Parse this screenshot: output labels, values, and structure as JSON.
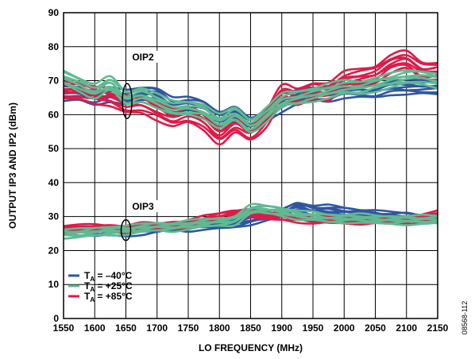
{
  "chart_data": {
    "type": "line",
    "title": "",
    "xlabel": "LO FREQUENCY (MHz)",
    "ylabel": "OUTPUT IP3 AND IP2 (dBm)",
    "xlim": [
      1550,
      2150
    ],
    "ylim": [
      0,
      90
    ],
    "x_ticks": [
      "1550",
      "1600",
      "1650",
      "1700",
      "1750",
      "1800",
      "1850",
      "1900",
      "1950",
      "2000",
      "2050",
      "2100",
      "2150"
    ],
    "y_ticks": [
      "0",
      "10",
      "20",
      "30",
      "40",
      "50",
      "60",
      "70",
      "80",
      "90"
    ],
    "grid": true,
    "legend_position": "bottom-left",
    "colors": {
      "m40": "#2f56a0",
      "p25": "#5fba92",
      "p85": "#e01a48"
    },
    "annotations": [
      {
        "text": "OIP2",
        "x": 1660,
        "y": 76,
        "ellipse_x": 1652,
        "ellipse_y": 64
      },
      {
        "text": "OIP3",
        "x": 1660,
        "y": 32,
        "ellipse_x": 1650,
        "ellipse_y": 26
      }
    ],
    "figure_id": "08568-112",
    "x": [
      1550,
      1575,
      1600,
      1625,
      1650,
      1675,
      1700,
      1725,
      1750,
      1775,
      1800,
      1825,
      1850,
      1875,
      1900,
      1925,
      1950,
      1975,
      2000,
      2025,
      2050,
      2075,
      2100,
      2125,
      2150
    ],
    "series": [
      {
        "name": "OIP2 TA = -40°C",
        "group": "OIP2",
        "temp": "m40",
        "spread": 2.0,
        "values": [
          66,
          66,
          65,
          66,
          65,
          66,
          66,
          63,
          63,
          62,
          59,
          60,
          57,
          60,
          63,
          65,
          66,
          66,
          67,
          67,
          67,
          68,
          68,
          68,
          68
        ]
      },
      {
        "name": "OIP2 TA = +85°C",
        "group": "OIP2",
        "temp": "p85",
        "spread": 2.5,
        "values": [
          67,
          67,
          66,
          65,
          63,
          63,
          61,
          59,
          60,
          58,
          54,
          57,
          55,
          59,
          66,
          65,
          67,
          67,
          70,
          71,
          72,
          75,
          76,
          73,
          73
        ]
      },
      {
        "name": "OIP2 TA = +25°C",
        "group": "OIP2",
        "temp": "p25",
        "spread": 2.0,
        "values": [
          71,
          69,
          67,
          69,
          65,
          66,
          64,
          62,
          62,
          61,
          58,
          60,
          57,
          60,
          64,
          65,
          66,
          67,
          68,
          68,
          69,
          70,
          71,
          71,
          70
        ]
      },
      {
        "name": "OIP3 TA = -40°C",
        "group": "OIP3",
        "temp": "m40",
        "spread": 1.2,
        "values": [
          26,
          26,
          25.5,
          25.5,
          25.5,
          26,
          26.5,
          27,
          27,
          27.5,
          27.5,
          28,
          29,
          30,
          31,
          33,
          32,
          32,
          31.5,
          31,
          30.5,
          30,
          30,
          29.5,
          29.5
        ]
      },
      {
        "name": "OIP3 TA = +85°C",
        "group": "OIP3",
        "temp": "p85",
        "spread": 1.0,
        "values": [
          26.5,
          26.5,
          26.5,
          26.5,
          26.5,
          27,
          27,
          27.5,
          28,
          29,
          30,
          31,
          31,
          30,
          30,
          29.5,
          29,
          29,
          29,
          29,
          29,
          29,
          29,
          29.5,
          30.5
        ]
      },
      {
        "name": "OIP3 TA = +25°C",
        "group": "OIP3",
        "temp": "p25",
        "spread": 1.2,
        "values": [
          25,
          25,
          25.5,
          26,
          26,
          26.5,
          27,
          27,
          27.5,
          28,
          28.5,
          29,
          32,
          32,
          31.5,
          30.5,
          30,
          29.5,
          29.5,
          29.5,
          29,
          29,
          29,
          29,
          29
        ]
      }
    ],
    "legend": [
      {
        "temp": "m40",
        "base": "T",
        "sub": "A",
        "value": " = –40°C"
      },
      {
        "temp": "p25",
        "base": "T",
        "sub": "A",
        "value": " = +25°C"
      },
      {
        "temp": "p85",
        "base": "T",
        "sub": "A",
        "value": " = +85°C"
      }
    ]
  }
}
